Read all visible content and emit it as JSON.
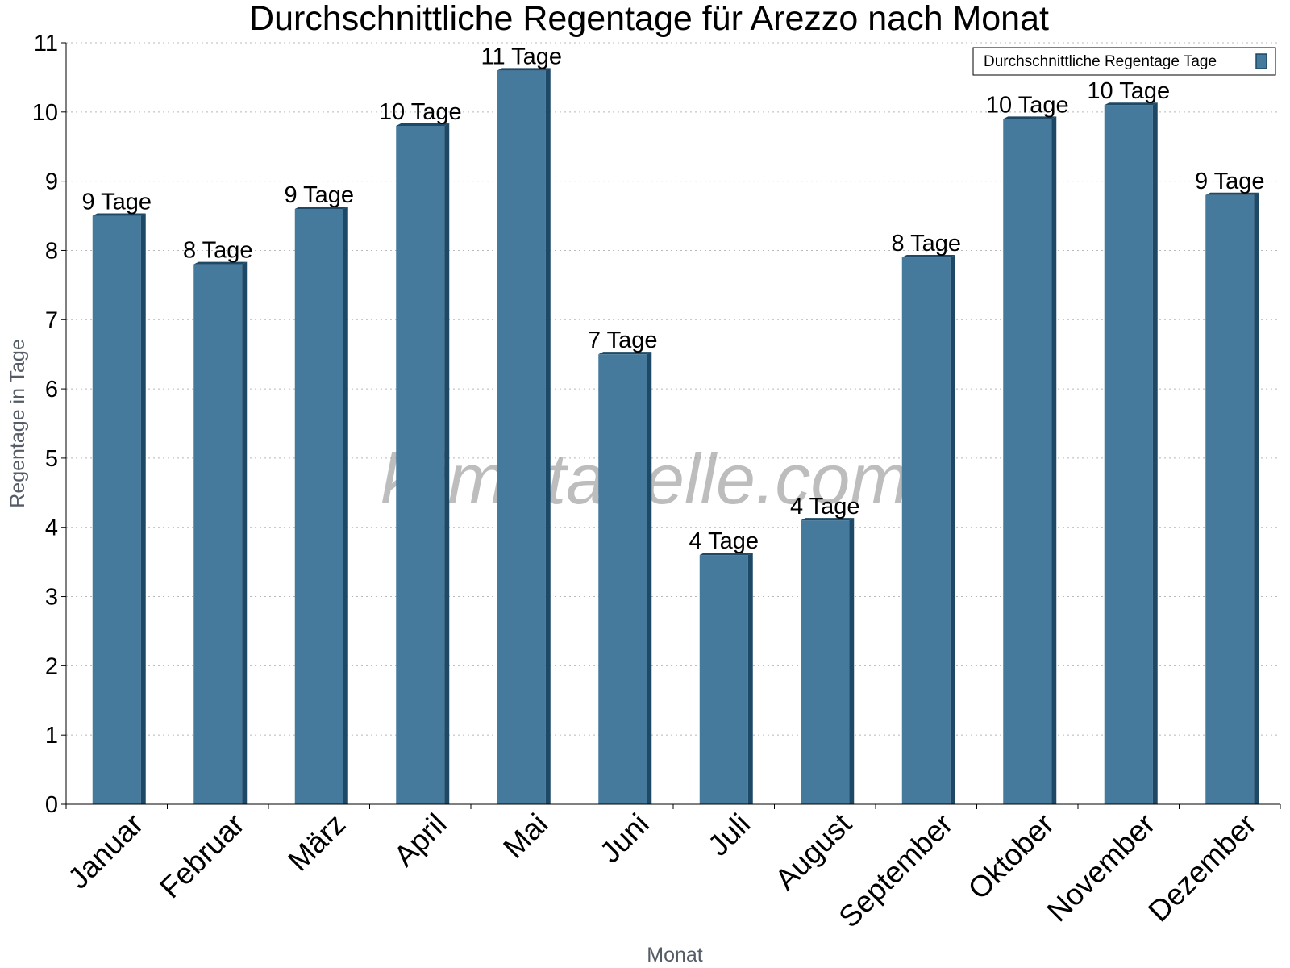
{
  "chart_data": {
    "type": "bar",
    "title": "Durchschnittliche Regentage für Arezzo nach Monat",
    "xlabel": "Monat",
    "ylabel": "Regentage in Tage",
    "ylim": [
      0,
      11
    ],
    "yticks": [
      "0",
      "1",
      "2",
      "3",
      "4",
      "5",
      "6",
      "7",
      "8",
      "9",
      "10",
      "11"
    ],
    "grid": true,
    "legend_position": "top-right",
    "categories": [
      "Januar",
      "Februar",
      "März",
      "April",
      "Mai",
      "Juni",
      "Juli",
      "August",
      "September",
      "Oktober",
      "November",
      "Dezember"
    ],
    "series": [
      {
        "name": "Durchschnittliche Regentage Tage",
        "values": [
          8.5,
          7.8,
          8.6,
          9.8,
          10.6,
          6.5,
          3.6,
          4.1,
          7.9,
          9.9,
          10.1,
          8.8
        ],
        "labels": [
          "9 Tage",
          "8 Tage",
          "9 Tage",
          "10 Tage",
          "11 Tage",
          "7 Tage",
          "4 Tage",
          "4 Tage",
          "8 Tage",
          "10 Tage",
          "10 Tage",
          "9 Tage"
        ],
        "color": "#457a9d",
        "side_color": "#1d4866",
        "top_color": "#1d4866"
      }
    ],
    "watermark": "klimatabelle.com"
  }
}
